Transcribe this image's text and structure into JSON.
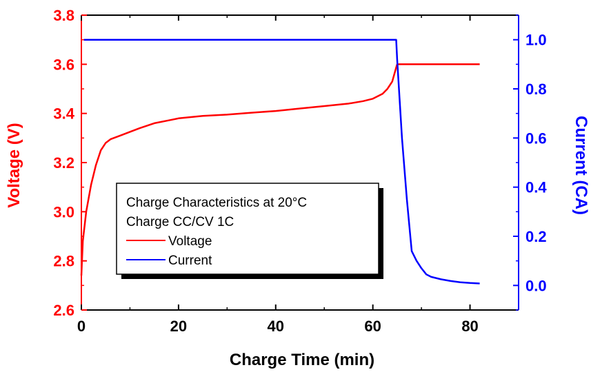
{
  "chart_data": {
    "type": "line",
    "title": "",
    "xlabel": "Charge Time (min)",
    "y_left_label": "Voltage (V)",
    "y_right_label": "Current (CA)",
    "xlim": [
      0,
      90
    ],
    "y_left_lim": [
      2.6,
      3.8
    ],
    "y_right_lim": [
      -0.1,
      1.1
    ],
    "x_ticks": [
      "0",
      "20",
      "40",
      "60",
      "80"
    ],
    "y_left_ticks": [
      "2.6",
      "2.8",
      "3.0",
      "3.2",
      "3.4",
      "3.6",
      "3.8"
    ],
    "y_right_ticks": [
      "0.0",
      "0.2",
      "0.4",
      "0.6",
      "0.8",
      "1.0"
    ],
    "grid": false,
    "legend": {
      "placement": "center-left",
      "lines": [
        "Charge Characteristics at 20°C",
        "Charge CC/CV 1C"
      ],
      "entries": [
        "Voltage",
        "Current"
      ]
    },
    "colors": {
      "voltage": "#ff0000",
      "current": "#0000ff",
      "axis": "#000000"
    },
    "series": [
      {
        "name": "Voltage",
        "axis": "left",
        "x": [
          0,
          0.3,
          1,
          2,
          3,
          4,
          5,
          6,
          8,
          10,
          12,
          15,
          18,
          20,
          25,
          30,
          35,
          40,
          45,
          50,
          55,
          58,
          60,
          62,
          63,
          64,
          64.7,
          65,
          66,
          70,
          75,
          80,
          82
        ],
        "y": [
          2.74,
          2.88,
          3.0,
          3.11,
          3.19,
          3.25,
          3.28,
          3.295,
          3.31,
          3.325,
          3.34,
          3.36,
          3.372,
          3.38,
          3.39,
          3.395,
          3.403,
          3.41,
          3.42,
          3.43,
          3.44,
          3.45,
          3.46,
          3.48,
          3.5,
          3.53,
          3.58,
          3.6,
          3.6,
          3.6,
          3.6,
          3.6,
          3.6
        ]
      },
      {
        "name": "Current",
        "axis": "right",
        "x": [
          0.5,
          10,
          20,
          40,
          60,
          64.8,
          65,
          66,
          67,
          68,
          69,
          70,
          71,
          72,
          74,
          76,
          78,
          80,
          82
        ],
        "y": [
          1.0,
          1.0,
          1.0,
          1.0,
          1.0,
          1.0,
          0.92,
          0.6,
          0.35,
          0.14,
          0.1,
          0.07,
          0.045,
          0.035,
          0.025,
          0.018,
          0.013,
          0.01,
          0.008
        ]
      }
    ]
  }
}
